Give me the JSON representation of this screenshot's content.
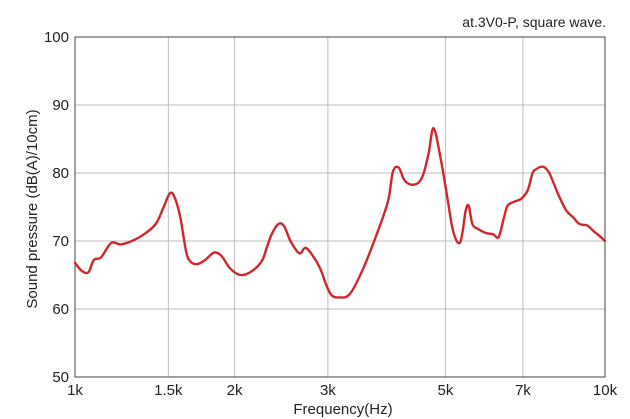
{
  "chart_data": {
    "type": "line",
    "title": "",
    "annotation": "at.3V0-P, square wave.",
    "xlabel": "Frequency(Hz)",
    "ylabel": "Sound pressure (dB(A)/10cm)",
    "x_scale": "log",
    "xlim": [
      1000,
      10000
    ],
    "ylim": [
      50,
      100
    ],
    "grid": true,
    "x_ticks": [
      {
        "value": 1000,
        "label": "1k"
      },
      {
        "value": 1500,
        "label": "1.5k"
      },
      {
        "value": 2000,
        "label": "2k"
      },
      {
        "value": 3000,
        "label": "3k"
      },
      {
        "value": 5000,
        "label": "5k"
      },
      {
        "value": 7000,
        "label": "7k"
      },
      {
        "value": 10000,
        "label": "10k"
      }
    ],
    "y_ticks": [
      {
        "value": 50,
        "label": "50"
      },
      {
        "value": 60,
        "label": "60"
      },
      {
        "value": 70,
        "label": "70"
      },
      {
        "value": 80,
        "label": "80"
      },
      {
        "value": 90,
        "label": "90"
      },
      {
        "value": 100,
        "label": "100"
      }
    ],
    "series": [
      {
        "color": "#d0262d",
        "x": [
          1000,
          1030,
          1060,
          1085,
          1120,
          1170,
          1220,
          1280,
          1350,
          1420,
          1470,
          1510,
          1540,
          1580,
          1620,
          1650,
          1700,
          1760,
          1830,
          1890,
          1960,
          2050,
          2150,
          2250,
          2300,
          2350,
          2420,
          2480,
          2550,
          2650,
          2720,
          2800,
          2900,
          2980,
          3050,
          3150,
          3300,
          3500,
          3750,
          3900,
          3980,
          4080,
          4180,
          4300,
          4450,
          4550,
          4650,
          4750,
          4900,
          5050,
          5150,
          5250,
          5330,
          5390,
          5460,
          5530,
          5620,
          5750,
          5950,
          6150,
          6300,
          6450,
          6550,
          6750,
          6950,
          7150,
          7300,
          7400,
          7550,
          7700,
          7850,
          8000,
          8200,
          8450,
          8700,
          8950,
          9250,
          9500,
          9750,
          10000
        ],
        "y": [
          66.8,
          65.6,
          65.4,
          67.2,
          67.6,
          69.7,
          69.5,
          70.0,
          71.0,
          72.5,
          75.0,
          77.0,
          76.5,
          73.5,
          68.5,
          67.0,
          66.6,
          67.2,
          68.3,
          67.8,
          66.0,
          65.0,
          65.5,
          67.0,
          69.0,
          71.0,
          72.5,
          72.2,
          70.0,
          68.2,
          69.0,
          68.0,
          66.0,
          63.5,
          62.0,
          61.7,
          62.2,
          66.0,
          72.0,
          76.0,
          80.2,
          80.8,
          79.0,
          78.3,
          78.6,
          80.0,
          83.0,
          86.6,
          82.0,
          76.0,
          72.0,
          70.0,
          69.8,
          71.5,
          74.5,
          75.2,
          72.5,
          71.8,
          71.2,
          71.0,
          70.6,
          73.5,
          75.2,
          75.8,
          76.2,
          77.5,
          80.0,
          80.5,
          80.9,
          80.8,
          80.0,
          78.5,
          76.5,
          74.5,
          73.5,
          72.5,
          72.3,
          71.5,
          70.8,
          70.0
        ]
      }
    ]
  }
}
